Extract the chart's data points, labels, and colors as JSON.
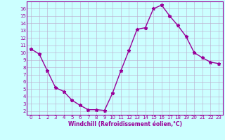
{
  "x": [
    0,
    1,
    2,
    3,
    4,
    5,
    6,
    7,
    8,
    9,
    10,
    11,
    12,
    13,
    14,
    15,
    16,
    17,
    18,
    19,
    20,
    21,
    22,
    23
  ],
  "y": [
    10.5,
    9.8,
    7.5,
    5.2,
    4.7,
    3.5,
    2.8,
    2.2,
    2.2,
    2.1,
    4.5,
    7.5,
    10.3,
    13.2,
    13.4,
    16.0,
    16.5,
    15.0,
    13.7,
    12.2,
    10.0,
    9.3,
    8.7,
    8.5
  ],
  "line_color": "#990099",
  "marker": "*",
  "marker_color": "#990099",
  "bg_color": "#ccffff",
  "grid_color": "#bbaacc",
  "xlabel": "Windchill (Refroidissement éolien,°C)",
  "xlabel_color": "#990099",
  "tick_color": "#990099",
  "xlim": [
    -0.5,
    23.5
  ],
  "ylim": [
    1.5,
    17.0
  ],
  "yticks": [
    2,
    3,
    4,
    5,
    6,
    7,
    8,
    9,
    10,
    11,
    12,
    13,
    14,
    15,
    16
  ],
  "xticks": [
    0,
    1,
    2,
    3,
    4,
    5,
    6,
    7,
    8,
    9,
    10,
    11,
    12,
    13,
    14,
    15,
    16,
    17,
    18,
    19,
    20,
    21,
    22,
    23
  ],
  "axes_border_color": "#990099",
  "marker_size": 3.5,
  "line_width": 1.0,
  "tick_fontsize": 5.0,
  "xlabel_fontsize": 5.5
}
